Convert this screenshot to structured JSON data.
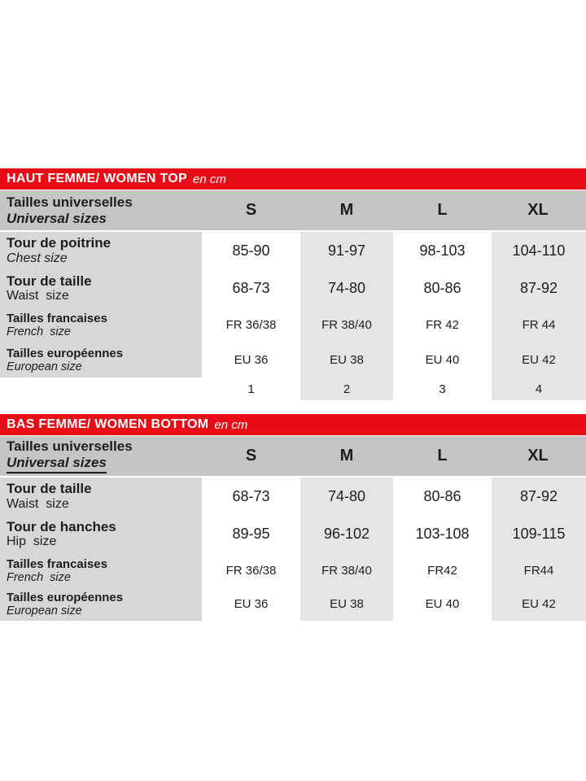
{
  "colors": {
    "red": "#e90c17",
    "header_gray": "#c5c5c5",
    "label_gray": "#d7d7d7",
    "cell_gray": "#e5e5e5",
    "text": "#1d1d1b"
  },
  "tables": [
    {
      "title": "HAUT FEMME/ WOMEN TOP",
      "unit": "en cm",
      "header": {
        "label_fr": "Tailles universelles",
        "label_en": "Universal sizes",
        "columns": [
          "S",
          "M",
          "L",
          "XL"
        ]
      },
      "rows": [
        {
          "label_fr": "Tour de poitrine",
          "label_en": "Chest size",
          "values": [
            "85-90",
            "91-97",
            "98-103",
            "104-110"
          ]
        },
        {
          "label_fr": "Tour de taille",
          "label_en": "Waist  size",
          "values": [
            "68-73",
            "74-80",
            "80-86",
            "87-92"
          ]
        },
        {
          "label_fr": "Tailles francaises",
          "label_en": "French  size",
          "values": [
            "FR 36/38",
            "FR 38/40",
            "FR 42",
            "FR 44"
          ]
        },
        {
          "label_fr": "Tailles européennes",
          "label_en": "European size",
          "values": [
            "EU 36",
            "EU 38",
            "EU 40",
            "EU 42"
          ]
        },
        {
          "label_fr": "",
          "label_en": "",
          "values": [
            "1",
            "2",
            "3",
            "4"
          ]
        }
      ]
    },
    {
      "title": "BAS FEMME/ WOMEN BOTTOM",
      "unit": "en cm",
      "header": {
        "label_fr": "Tailles universelles",
        "label_en": "Universal sizes",
        "columns": [
          "S",
          "M",
          "L",
          "XL"
        ]
      },
      "rows": [
        {
          "label_fr": "Tour de taille",
          "label_en": "Waist  size",
          "values": [
            "68-73",
            "74-80",
            "80-86",
            "87-92"
          ]
        },
        {
          "label_fr": "Tour de hanches",
          "label_en": "Hip  size",
          "values": [
            "89-95",
            "96-102",
            "103-108",
            "109-115"
          ]
        },
        {
          "label_fr": "Tailles francaises",
          "label_en": "French  size",
          "values": [
            "FR 36/38",
            "FR 38/40",
            "FR42",
            "FR44"
          ]
        },
        {
          "label_fr": "Tailles européennes",
          "label_en": "European size",
          "values": [
            "EU 36",
            "EU 38",
            "EU 40",
            "EU 42"
          ]
        }
      ]
    }
  ]
}
